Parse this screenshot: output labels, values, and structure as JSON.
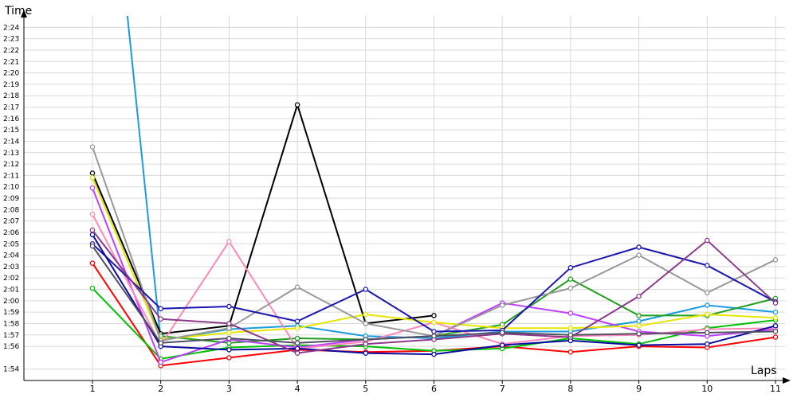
{
  "chart_data": {
    "type": "line",
    "ylabel": "Time",
    "xlabel": "Laps",
    "x": [
      1,
      2,
      3,
      4,
      5,
      6,
      7,
      8,
      9,
      10,
      11
    ],
    "ylim": [
      113,
      145
    ],
    "yticks": [
      {
        "v": 114,
        "label": "1:54"
      },
      {
        "v": 116,
        "label": "1:56"
      },
      {
        "v": 117,
        "label": "1:57"
      },
      {
        "v": 118,
        "label": "1:58"
      },
      {
        "v": 119,
        "label": "1:59"
      },
      {
        "v": 120,
        "label": "2:00"
      },
      {
        "v": 121,
        "label": "2:01"
      },
      {
        "v": 122,
        "label": "2:02"
      },
      {
        "v": 123,
        "label": "2:03"
      },
      {
        "v": 124,
        "label": "2:04"
      },
      {
        "v": 125,
        "label": "2:05"
      },
      {
        "v": 126,
        "label": "2:06"
      },
      {
        "v": 127,
        "label": "2:07"
      },
      {
        "v": 128,
        "label": "2:08"
      },
      {
        "v": 129,
        "label": "2:09"
      },
      {
        "v": 130,
        "label": "2:10"
      },
      {
        "v": 131,
        "label": "2:11"
      },
      {
        "v": 132,
        "label": "2:12"
      },
      {
        "v": 133,
        "label": "2:13"
      },
      {
        "v": 134,
        "label": "2:14"
      },
      {
        "v": 135,
        "label": "2:15"
      },
      {
        "v": 136,
        "label": "2:16"
      },
      {
        "v": 137,
        "label": "2:17"
      },
      {
        "v": 138,
        "label": "2:18"
      },
      {
        "v": 139,
        "label": "2:19"
      },
      {
        "v": 140,
        "label": "2:20"
      },
      {
        "v": 141,
        "label": "2:21"
      },
      {
        "v": 142,
        "label": "2:22"
      },
      {
        "v": 143,
        "label": "2:23"
      },
      {
        "v": 144,
        "label": "2:24"
      }
    ],
    "xticks": [
      "1",
      "2",
      "3",
      "4",
      "5",
      "6",
      "7",
      "8",
      "9",
      "10",
      "11"
    ],
    "grid": true,
    "series": [
      {
        "color": "#1a9be0",
        "values": [
          175,
          116.5,
          117.5,
          117.8,
          116.9,
          116.7,
          117.3,
          117.3,
          118.2,
          119.6,
          119.0
        ],
        "first_off_chart": true
      },
      {
        "color": "#000000",
        "values": [
          131.2,
          117.1,
          117.8,
          137.2,
          118.0,
          118.7,
          null,
          null,
          null,
          null,
          null
        ]
      },
      {
        "color": "#3f3f3f",
        "values": [
          null,
          null,
          null,
          null,
          null,
          null,
          null,
          null,
          null,
          null,
          null
        ]
      },
      {
        "color": "#ff0000",
        "values": [
          123.3,
          114.3,
          115.0,
          115.7,
          115.5,
          115.6,
          116.0,
          115.5,
          116.0,
          115.9,
          116.8
        ]
      },
      {
        "color": "#00c000",
        "values": [
          121.1,
          114.9,
          115.9,
          116.1,
          116.0,
          115.6,
          115.8,
          116.7,
          116.2,
          117.6,
          118.3
        ]
      },
      {
        "color": "#1f9e1f",
        "values": [
          null,
          116.9,
          116.3,
          116.7,
          116.6,
          116.9,
          117.9,
          121.9,
          118.7,
          118.7,
          120.2
        ]
      },
      {
        "color": "#c040ff",
        "values": [
          129.9,
          114.6,
          116.6,
          115.9,
          116.6,
          116.9,
          119.8,
          118.9,
          117.3,
          116.9,
          117.5
        ]
      },
      {
        "color": "#ff88bb",
        "values": [
          127.6,
          116.1,
          125.2,
          115.8,
          116.4,
          118.1,
          116.2,
          116.9,
          117.0,
          117.5,
          117.6
        ]
      },
      {
        "color": "#e6e600",
        "values": [
          130.8,
          116.6,
          117.2,
          117.6,
          118.8,
          118.1,
          117.6,
          117.6,
          117.8,
          118.8,
          118.5
        ]
      },
      {
        "color": "#999999",
        "values": [
          133.5,
          116.5,
          117.6,
          121.2,
          118.0,
          116.9,
          119.6,
          121.1,
          124.0,
          120.7,
          123.6
        ]
      },
      {
        "color": "#1b18b0",
        "values": [
          125.0,
          119.3,
          119.5,
          118.2,
          121.0,
          117.3,
          117.4,
          122.9,
          124.7,
          123.1,
          119.9
        ]
      },
      {
        "color": "#0a0aa0",
        "values": [
          125.8,
          116.0,
          115.7,
          115.8,
          115.4,
          115.3,
          116.1,
          116.5,
          116.1,
          116.2,
          117.8
        ]
      },
      {
        "color": "#8b3a8b",
        "values": [
          126.2,
          118.4,
          118.0,
          115.4,
          116.2,
          116.6,
          117.1,
          116.8,
          120.4,
          125.3,
          119.8
        ]
      },
      {
        "color": "#505060",
        "values": [
          124.8,
          116.3,
          116.7,
          116.3,
          116.6,
          116.9,
          117.2,
          117.0,
          117.1,
          117.2,
          117.3
        ]
      }
    ]
  }
}
